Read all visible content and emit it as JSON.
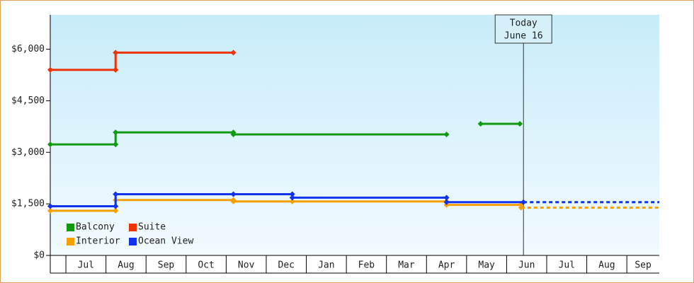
{
  "chart_data": {
    "type": "line",
    "categories": [
      "Jul",
      "Aug",
      "Sep",
      "Oct",
      "Nov",
      "Dec",
      "Jan",
      "Feb",
      "Mar",
      "Apr",
      "May",
      "Jun",
      "Jul",
      "Aug",
      "Sep"
    ],
    "xlim": [
      -0.39,
      14.81
    ],
    "ylim": [
      0,
      7000
    ],
    "yticks": [
      {
        "value": 0,
        "label": "$0"
      },
      {
        "value": 1500,
        "label": "$1,500"
      },
      {
        "value": 3000,
        "label": "$3,000"
      },
      {
        "value": 4500,
        "label": "$4,500"
      },
      {
        "value": 6000,
        "label": "$6,000"
      }
    ],
    "legend": "bottom-left",
    "series": [
      {
        "name": "Balcony",
        "color": "#119911",
        "x": [
          -0.39,
          1.24,
          1.24,
          4.18,
          4.18,
          9.5,
          null,
          10.35,
          11.33
        ],
        "values": [
          3230,
          3230,
          3580,
          3580,
          3520,
          3520,
          null,
          3830,
          3830
        ]
      },
      {
        "name": "Suite",
        "color": "#ee3300",
        "x": [
          -0.39,
          1.24,
          1.24,
          4.18
        ],
        "values": [
          5400,
          5400,
          5900,
          5900
        ]
      },
      {
        "name": "Interior",
        "color": "#f5a000",
        "x": [
          -0.39,
          1.24,
          1.24,
          4.18,
          4.18,
          5.65,
          9.5,
          9.5,
          11.36,
          11.36
        ],
        "values": [
          1300,
          1300,
          1610,
          1610,
          1570,
          1570,
          1570,
          1470,
          1470,
          1390
        ],
        "forecast": {
          "x": [
            11.36,
            14.81
          ],
          "values": [
            1390,
            1390
          ]
        }
      },
      {
        "name": "Ocean View",
        "color": "#1133ee",
        "x": [
          -0.39,
          1.24,
          1.24,
          4.18,
          5.65,
          5.65,
          9.5,
          9.5,
          11.42
        ],
        "values": [
          1430,
          1430,
          1780,
          1780,
          1780,
          1680,
          1680,
          1550,
          1550
        ],
        "forecast": {
          "x": [
            11.42,
            14.81
          ],
          "values": [
            1550,
            1550
          ]
        }
      }
    ],
    "annotation": {
      "text": [
        "Today",
        "June 16"
      ],
      "x": 11.42
    }
  }
}
